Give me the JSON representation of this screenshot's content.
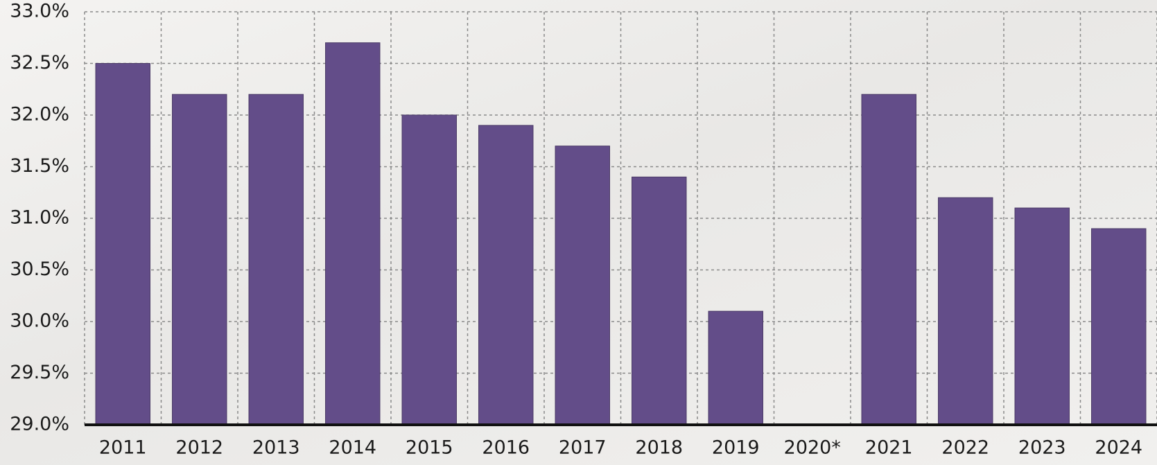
{
  "chart_data": {
    "type": "bar",
    "categories": [
      "2011",
      "2012",
      "2013",
      "2014",
      "2015",
      "2016",
      "2017",
      "2018",
      "2019",
      "2020*",
      "2021",
      "2022",
      "2023",
      "2024"
    ],
    "values": [
      32.5,
      32.2,
      32.2,
      32.7,
      32.0,
      31.9,
      31.7,
      31.4,
      30.1,
      null,
      32.2,
      31.2,
      31.1,
      30.9
    ],
    "color": "#634d89",
    "ylim": [
      29,
      33
    ],
    "yticks": [
      {
        "value": 29,
        "label": "29.0%"
      },
      {
        "value": 29.5,
        "label": "29.5%"
      },
      {
        "value": 30,
        "label": "30.0%"
      },
      {
        "value": 30.5,
        "label": "30.5%"
      },
      {
        "value": 31,
        "label": "31.0%"
      },
      {
        "value": 31.5,
        "label": "31.5%"
      },
      {
        "value": 32,
        "label": "32.0%"
      },
      {
        "value": 32.5,
        "label": "32.5%"
      },
      {
        "value": 33,
        "label": "33.0%"
      }
    ],
    "grid": true
  }
}
